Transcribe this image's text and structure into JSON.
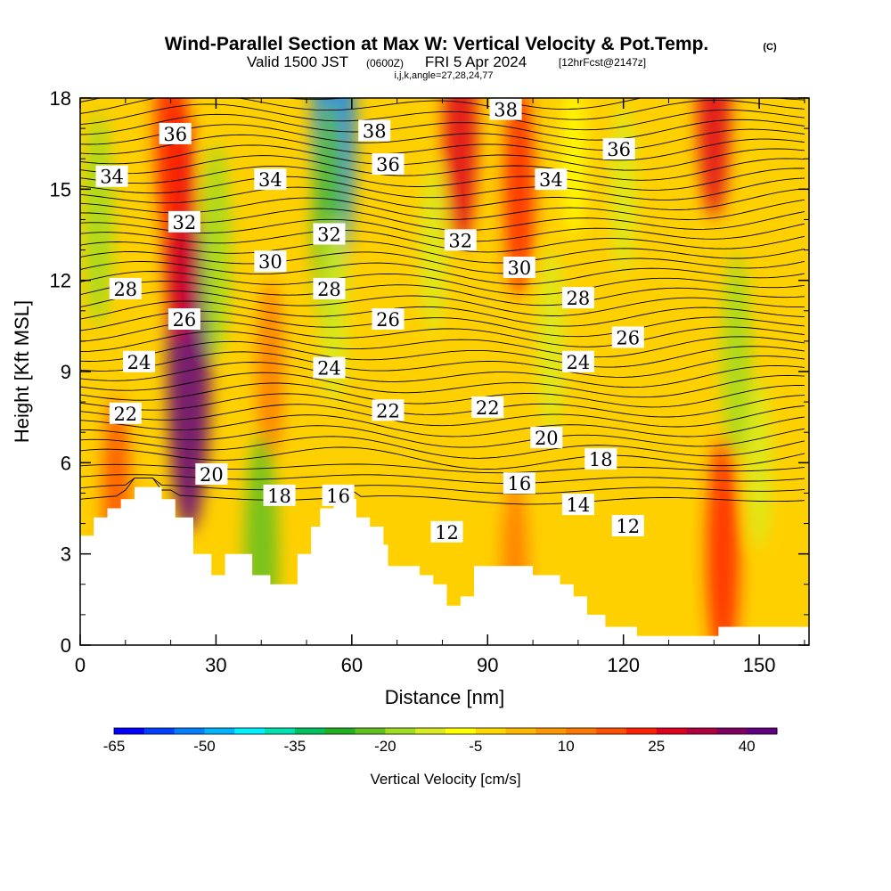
{
  "title": {
    "main": "Wind-Parallel Section at Max W: Vertical Velocity & Pot.Temp.",
    "copyright": "(C)",
    "valid_prefix": "Valid 1500 JST",
    "valid_utc": "(0600Z)",
    "valid_date": "FRI 5 Apr 2024",
    "forecast": "[12hrFcst@2147z]",
    "indices": "i,j,k,angle=27,28,24,77"
  },
  "chart_data": {
    "type": "heatmap",
    "xlabel": "Distance [nm]",
    "ylabel": "Height [Kft MSL]",
    "xlim": [
      0,
      161
    ],
    "ylim": [
      0,
      18
    ],
    "xticks": [
      0,
      30,
      60,
      90,
      120,
      150
    ],
    "yticks": [
      0,
      3,
      6,
      9,
      12,
      15,
      18
    ],
    "colorbar": {
      "label": "Vertical Velocity [cm/s]",
      "tick_labels": [
        -65,
        -50,
        -35,
        -20,
        -5,
        10,
        25,
        40
      ],
      "colors": [
        "#0000ff",
        "#0040ff",
        "#0080ff",
        "#00b4ff",
        "#00f0ff",
        "#00e0b0",
        "#00c060",
        "#20b020",
        "#60c020",
        "#a0dc20",
        "#d8ec20",
        "#ffff00",
        "#ffd800",
        "#ffb800",
        "#ff9800",
        "#ff7800",
        "#ff5000",
        "#ff2000",
        "#e00020",
        "#b00040",
        "#800060",
        "#600080"
      ]
    },
    "vertical_velocity_features": [
      {
        "x": 24,
        "y": 9,
        "w_cm_s": 40
      },
      {
        "x": 22,
        "y": 14,
        "w_cm_s": 25
      },
      {
        "x": 20,
        "y": 17,
        "w_cm_s": 22
      },
      {
        "x": 4,
        "y": 14,
        "w_cm_s": -20
      },
      {
        "x": 30,
        "y": 13,
        "w_cm_s": -20
      },
      {
        "x": 56,
        "y": 17,
        "w_cm_s": -55
      },
      {
        "x": 55,
        "y": 14,
        "w_cm_s": -25
      },
      {
        "x": 56,
        "y": 11,
        "w_cm_s": -15
      },
      {
        "x": 42,
        "y": 9,
        "w_cm_s": 14
      },
      {
        "x": 84,
        "y": 17,
        "w_cm_s": 25
      },
      {
        "x": 97,
        "y": 15,
        "w_cm_s": 20
      },
      {
        "x": 78,
        "y": 13,
        "w_cm_s": -12
      },
      {
        "x": 104,
        "y": 10,
        "w_cm_s": -15
      },
      {
        "x": 109,
        "y": 16,
        "w_cm_s": -10
      },
      {
        "x": 120,
        "y": 15,
        "w_cm_s": -12
      },
      {
        "x": 140,
        "y": 18,
        "w_cm_s": 25
      },
      {
        "x": 145,
        "y": 9.5,
        "w_cm_s": -18
      },
      {
        "x": 142,
        "y": 3,
        "w_cm_s": 24
      },
      {
        "x": 40,
        "y": 3,
        "w_cm_s": -25
      },
      {
        "x": 8,
        "y": 5,
        "w_cm_s": 16
      },
      {
        "x": 96,
        "y": 2.5,
        "w_cm_s": 14
      },
      {
        "x": 150,
        "y": 6,
        "w_cm_s": -12
      }
    ],
    "theta_contours": {
      "labels": [
        {
          "text": "36",
          "x": 21,
          "y": 16.8
        },
        {
          "text": "34",
          "x": 7,
          "y": 15.4
        },
        {
          "text": "32",
          "x": 23,
          "y": 13.9
        },
        {
          "text": "28",
          "x": 10,
          "y": 11.7
        },
        {
          "text": "26",
          "x": 23,
          "y": 10.7
        },
        {
          "text": "24",
          "x": 13,
          "y": 9.3
        },
        {
          "text": "22",
          "x": 10,
          "y": 7.6
        },
        {
          "text": "20",
          "x": 29,
          "y": 5.6
        },
        {
          "text": "18",
          "x": 44,
          "y": 4.9
        },
        {
          "text": "16",
          "x": 57,
          "y": 4.9
        },
        {
          "text": "38",
          "x": 65,
          "y": 16.9
        },
        {
          "text": "34",
          "x": 42,
          "y": 15.3
        },
        {
          "text": "36",
          "x": 68,
          "y": 15.8
        },
        {
          "text": "32",
          "x": 55,
          "y": 13.5
        },
        {
          "text": "30",
          "x": 42,
          "y": 12.6
        },
        {
          "text": "28",
          "x": 55,
          "y": 11.7
        },
        {
          "text": "26",
          "x": 68,
          "y": 10.7
        },
        {
          "text": "24",
          "x": 55,
          "y": 9.1
        },
        {
          "text": "22",
          "x": 68,
          "y": 7.7
        },
        {
          "text": "22",
          "x": 90,
          "y": 7.8
        },
        {
          "text": "38",
          "x": 94,
          "y": 17.6
        },
        {
          "text": "32",
          "x": 84,
          "y": 13.3
        },
        {
          "text": "34",
          "x": 104,
          "y": 15.3
        },
        {
          "text": "30",
          "x": 97,
          "y": 12.4
        },
        {
          "text": "28",
          "x": 110,
          "y": 11.4
        },
        {
          "text": "24",
          "x": 110,
          "y": 9.3
        },
        {
          "text": "36",
          "x": 119,
          "y": 16.3
        },
        {
          "text": "26",
          "x": 121,
          "y": 10.1
        },
        {
          "text": "20",
          "x": 103,
          "y": 6.8
        },
        {
          "text": "18",
          "x": 115,
          "y": 6.1
        },
        {
          "text": "16",
          "x": 97,
          "y": 5.3
        },
        {
          "text": "14",
          "x": 110,
          "y": 4.6
        },
        {
          "text": "12",
          "x": 81,
          "y": 3.7
        },
        {
          "text": "12",
          "x": 121,
          "y": 3.9
        }
      ],
      "interval_k": 1
    },
    "terrain_height_kft": [
      {
        "x": 0,
        "h": 3.6
      },
      {
        "x": 3,
        "h": 3.6
      },
      {
        "x": 3,
        "h": 4.2
      },
      {
        "x": 6,
        "h": 4.2
      },
      {
        "x": 6,
        "h": 4.5
      },
      {
        "x": 9,
        "h": 4.5
      },
      {
        "x": 9,
        "h": 4.8
      },
      {
        "x": 12,
        "h": 4.8
      },
      {
        "x": 12,
        "h": 5.2
      },
      {
        "x": 18,
        "h": 5.2
      },
      {
        "x": 18,
        "h": 4.8
      },
      {
        "x": 21,
        "h": 4.8
      },
      {
        "x": 21,
        "h": 4.2
      },
      {
        "x": 25,
        "h": 4.2
      },
      {
        "x": 25,
        "h": 3.0
      },
      {
        "x": 29,
        "h": 3.0
      },
      {
        "x": 29,
        "h": 2.3
      },
      {
        "x": 32,
        "h": 2.3
      },
      {
        "x": 32,
        "h": 3.0
      },
      {
        "x": 38,
        "h": 3.0
      },
      {
        "x": 38,
        "h": 2.3
      },
      {
        "x": 42,
        "h": 2.3
      },
      {
        "x": 42,
        "h": 2.0
      },
      {
        "x": 48,
        "h": 2.0
      },
      {
        "x": 48,
        "h": 3.0
      },
      {
        "x": 51,
        "h": 3.0
      },
      {
        "x": 51,
        "h": 3.9
      },
      {
        "x": 53,
        "h": 3.9
      },
      {
        "x": 53,
        "h": 4.5
      },
      {
        "x": 56,
        "h": 4.5
      },
      {
        "x": 56,
        "h": 4.8
      },
      {
        "x": 61,
        "h": 4.8
      },
      {
        "x": 61,
        "h": 4.2
      },
      {
        "x": 64,
        "h": 4.2
      },
      {
        "x": 64,
        "h": 3.9
      },
      {
        "x": 67,
        "h": 3.9
      },
      {
        "x": 67,
        "h": 3.3
      },
      {
        "x": 68,
        "h": 3.3
      },
      {
        "x": 68,
        "h": 2.6
      },
      {
        "x": 75,
        "h": 2.6
      },
      {
        "x": 75,
        "h": 2.3
      },
      {
        "x": 78,
        "h": 2.3
      },
      {
        "x": 78,
        "h": 2.0
      },
      {
        "x": 81,
        "h": 2.0
      },
      {
        "x": 81,
        "h": 1.3
      },
      {
        "x": 84,
        "h": 1.3
      },
      {
        "x": 84,
        "h": 1.6
      },
      {
        "x": 87,
        "h": 1.6
      },
      {
        "x": 87,
        "h": 2.6
      },
      {
        "x": 94,
        "h": 2.6
      },
      {
        "x": 94,
        "h": 2.6
      },
      {
        "x": 100,
        "h": 2.6
      },
      {
        "x": 100,
        "h": 2.3
      },
      {
        "x": 106,
        "h": 2.3
      },
      {
        "x": 106,
        "h": 2.0
      },
      {
        "x": 109,
        "h": 2.0
      },
      {
        "x": 109,
        "h": 1.6
      },
      {
        "x": 112,
        "h": 1.6
      },
      {
        "x": 112,
        "h": 1.0
      },
      {
        "x": 116,
        "h": 1.0
      },
      {
        "x": 116,
        "h": 0.6
      },
      {
        "x": 123,
        "h": 0.6
      },
      {
        "x": 123,
        "h": 0.3
      },
      {
        "x": 141,
        "h": 0.3
      },
      {
        "x": 141,
        "h": 0.6
      },
      {
        "x": 147,
        "h": 0.6
      },
      {
        "x": 147,
        "h": 0.6
      },
      {
        "x": 161,
        "h": 0.6
      }
    ]
  }
}
